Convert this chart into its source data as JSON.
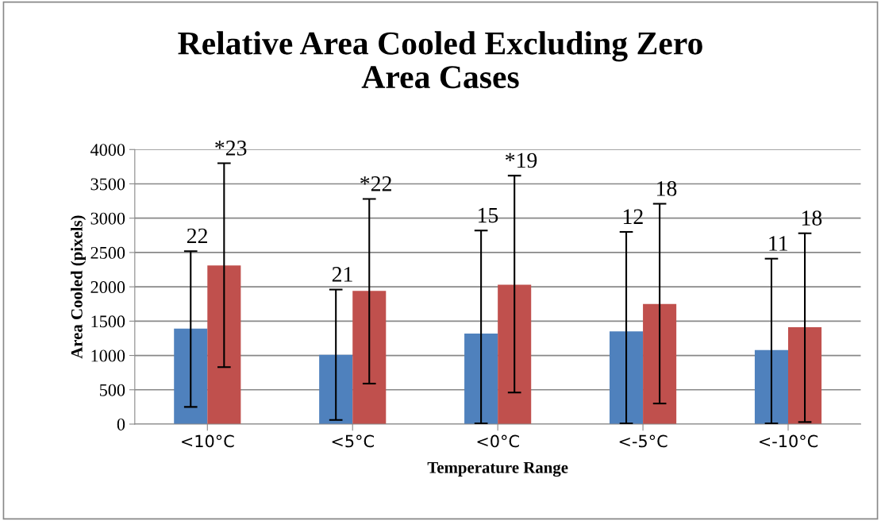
{
  "chart_data": {
    "type": "bar",
    "title": "Relative Area Cooled Excluding Zero\nArea Cases",
    "xlabel": "Temperature Range",
    "ylabel": "Area Cooled (pixels)",
    "categories": [
      "<10°C",
      "<5°C",
      "<0°C",
      "<-5°C",
      "<-10°C"
    ],
    "series": [
      {
        "color": "#4f81bd",
        "values": [
          1390,
          1010,
          1320,
          1350,
          1080
        ],
        "errors": [
          [
            250,
            2520
          ],
          [
            60,
            1960
          ],
          [
            10,
            2820
          ],
          [
            10,
            2800
          ],
          [
            10,
            2410
          ]
        ]
      },
      {
        "color": "#c0504d",
        "values": [
          2310,
          1940,
          2030,
          1750,
          1410
        ],
        "errors": [
          [
            830,
            3800
          ],
          [
            590,
            3280
          ],
          [
            460,
            3620
          ],
          [
            300,
            3210
          ],
          [
            30,
            2780
          ]
        ]
      }
    ],
    "annotations": [
      "22",
      "*23",
      "21",
      "*22",
      "15",
      "*19",
      "12",
      "18",
      "11",
      "18"
    ],
    "ylim": [
      0,
      4000
    ],
    "yticks": [
      0,
      500,
      1000,
      1500,
      2000,
      2500,
      3000,
      3500,
      4000
    ],
    "grid": "y",
    "legend": false
  }
}
